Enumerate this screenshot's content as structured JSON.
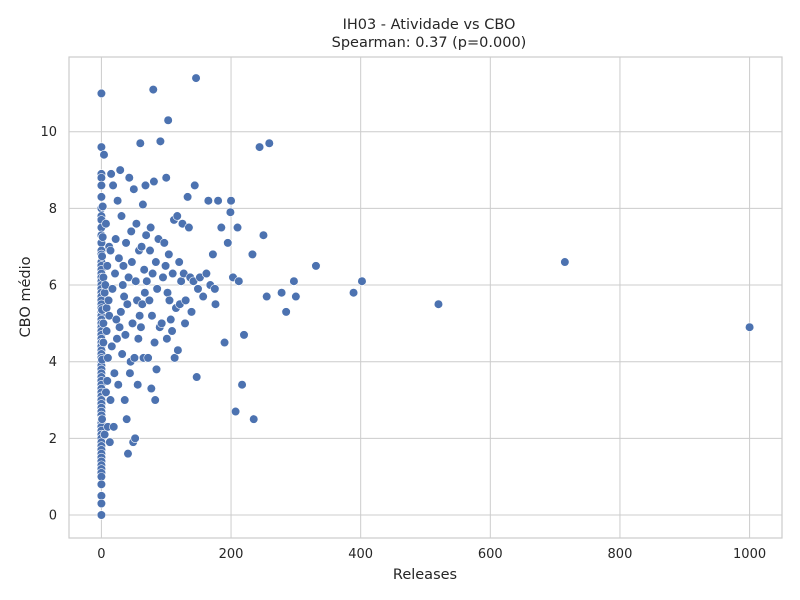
{
  "chart_data": {
    "type": "scatter",
    "title": "IH03 - Atividade vs CBO",
    "subtitle": "Spearman: 0.37 (p=0.000)",
    "xlabel": "Releases",
    "ylabel": "CBO médio",
    "xlim": [
      -50,
      1050
    ],
    "ylim": [
      -0.6,
      11.95
    ],
    "xticks": [
      0,
      200,
      400,
      600,
      800,
      1000
    ],
    "yticks": [
      0,
      2,
      4,
      6,
      8,
      10
    ],
    "grid": true,
    "legend": "none",
    "point_color": "#4c72b0",
    "points": [
      [
        0,
        11.0
      ],
      [
        0,
        9.6
      ],
      [
        0,
        8.9
      ],
      [
        0,
        8.8
      ],
      [
        0,
        8.6
      ],
      [
        0,
        8.3
      ],
      [
        0,
        8.0
      ],
      [
        0,
        7.8
      ],
      [
        0,
        7.7
      ],
      [
        0,
        7.5
      ],
      [
        0,
        7.3
      ],
      [
        0,
        7.1
      ],
      [
        0,
        6.9
      ],
      [
        0,
        6.8
      ],
      [
        0,
        6.6
      ],
      [
        0,
        6.5
      ],
      [
        0,
        6.4
      ],
      [
        0,
        6.3
      ],
      [
        0,
        6.2
      ],
      [
        0,
        6.1
      ],
      [
        0,
        6.0
      ],
      [
        0,
        5.9
      ],
      [
        0,
        5.8
      ],
      [
        0,
        5.7
      ],
      [
        0,
        5.6
      ],
      [
        0,
        5.5
      ],
      [
        0,
        5.4
      ],
      [
        0,
        5.3
      ],
      [
        0,
        5.2
      ],
      [
        0,
        5.1
      ],
      [
        0,
        5.0
      ],
      [
        0,
        4.9
      ],
      [
        0,
        4.8
      ],
      [
        0,
        4.7
      ],
      [
        0,
        4.6
      ],
      [
        0,
        4.5
      ],
      [
        0,
        4.4
      ],
      [
        0,
        4.3
      ],
      [
        0,
        4.2
      ],
      [
        0,
        4.1
      ],
      [
        0,
        4.0
      ],
      [
        0,
        3.9
      ],
      [
        0,
        3.8
      ],
      [
        0,
        3.7
      ],
      [
        0,
        3.6
      ],
      [
        0,
        3.5
      ],
      [
        0,
        3.4
      ],
      [
        0,
        3.3
      ],
      [
        0,
        3.2
      ],
      [
        0,
        3.1
      ],
      [
        0,
        3.0
      ],
      [
        0,
        2.9
      ],
      [
        0,
        2.8
      ],
      [
        0,
        2.7
      ],
      [
        0,
        2.6
      ],
      [
        0,
        2.5
      ],
      [
        0,
        2.4
      ],
      [
        0,
        2.3
      ],
      [
        0,
        2.2
      ],
      [
        0,
        2.1
      ],
      [
        0,
        2.0
      ],
      [
        0,
        1.9
      ],
      [
        0,
        1.8
      ],
      [
        0,
        1.7
      ],
      [
        0,
        1.6
      ],
      [
        0,
        1.5
      ],
      [
        0,
        1.4
      ],
      [
        0,
        1.3
      ],
      [
        0,
        1.2
      ],
      [
        0,
        1.1
      ],
      [
        0,
        1.0
      ],
      [
        0,
        0.8
      ],
      [
        0,
        0.5
      ],
      [
        0,
        0.3
      ],
      [
        0,
        0.0
      ],
      [
        1,
        2.5
      ],
      [
        1,
        4.05
      ],
      [
        1,
        5.35
      ],
      [
        1,
        6.75
      ],
      [
        2,
        7.25
      ],
      [
        2,
        8.05
      ],
      [
        3,
        4.5
      ],
      [
        3,
        6.2
      ],
      [
        3,
        5.0
      ],
      [
        4,
        9.4
      ],
      [
        5,
        2.1
      ],
      [
        5,
        5.8
      ],
      [
        6,
        6.0
      ],
      [
        7,
        3.2
      ],
      [
        7,
        7.6
      ],
      [
        8,
        5.4
      ],
      [
        8,
        4.8
      ],
      [
        9,
        3.5
      ],
      [
        9,
        6.5
      ],
      [
        10,
        2.3
      ],
      [
        10,
        4.1
      ],
      [
        11,
        5.6
      ],
      [
        12,
        7.0
      ],
      [
        12,
        5.2
      ],
      [
        13,
        1.9
      ],
      [
        14,
        3.0
      ],
      [
        14,
        6.9
      ],
      [
        15,
        8.9
      ],
      [
        16,
        4.4
      ],
      [
        17,
        5.9
      ],
      [
        18,
        8.6
      ],
      [
        19,
        2.3
      ],
      [
        20,
        3.7
      ],
      [
        21,
        6.3
      ],
      [
        22,
        7.2
      ],
      [
        23,
        5.1
      ],
      [
        24,
        4.6
      ],
      [
        25,
        8.2
      ],
      [
        26,
        3.4
      ],
      [
        27,
        6.7
      ],
      [
        28,
        4.9
      ],
      [
        29,
        9.0
      ],
      [
        30,
        5.3
      ],
      [
        31,
        7.8
      ],
      [
        32,
        4.2
      ],
      [
        33,
        6.0
      ],
      [
        34,
        6.5
      ],
      [
        35,
        5.7
      ],
      [
        36,
        3.0
      ],
      [
        37,
        4.7
      ],
      [
        38,
        7.1
      ],
      [
        39,
        2.5
      ],
      [
        40,
        5.5
      ],
      [
        41,
        1.6
      ],
      [
        42,
        6.2
      ],
      [
        43,
        8.8
      ],
      [
        44,
        3.7
      ],
      [
        45,
        4.0
      ],
      [
        46,
        7.4
      ],
      [
        47,
        6.6
      ],
      [
        48,
        5.0
      ],
      [
        49,
        1.9
      ],
      [
        50,
        8.5
      ],
      [
        51,
        4.1
      ],
      [
        52,
        2.0
      ],
      [
        53,
        6.1
      ],
      [
        54,
        7.6
      ],
      [
        55,
        5.6
      ],
      [
        56,
        3.4
      ],
      [
        57,
        4.6
      ],
      [
        58,
        6.9
      ],
      [
        59,
        5.2
      ],
      [
        60,
        9.7
      ],
      [
        61,
        4.9
      ],
      [
        62,
        7.0
      ],
      [
        63,
        5.5
      ],
      [
        64,
        8.1
      ],
      [
        65,
        4.1
      ],
      [
        66,
        6.4
      ],
      [
        67,
        5.8
      ],
      [
        68,
        8.6
      ],
      [
        69,
        7.3
      ],
      [
        70,
        6.1
      ],
      [
        72,
        4.1
      ],
      [
        74,
        5.6
      ],
      [
        75,
        6.9
      ],
      [
        76,
        7.5
      ],
      [
        77,
        3.3
      ],
      [
        78,
        5.2
      ],
      [
        79,
        6.3
      ],
      [
        80,
        11.1
      ],
      [
        81,
        8.7
      ],
      [
        82,
        4.5
      ],
      [
        83,
        3.0
      ],
      [
        84,
        6.6
      ],
      [
        85,
        3.8
      ],
      [
        86,
        5.9
      ],
      [
        88,
        7.2
      ],
      [
        90,
        4.9
      ],
      [
        91,
        9.75
      ],
      [
        93,
        5.0
      ],
      [
        95,
        6.2
      ],
      [
        97,
        7.1
      ],
      [
        99,
        6.5
      ],
      [
        100,
        8.8
      ],
      [
        101,
        4.6
      ],
      [
        102,
        5.8
      ],
      [
        103,
        10.3
      ],
      [
        104,
        6.8
      ],
      [
        105,
        5.6
      ],
      [
        107,
        5.1
      ],
      [
        109,
        4.8
      ],
      [
        110,
        6.3
      ],
      [
        112,
        7.7
      ],
      [
        113,
        4.1
      ],
      [
        115,
        5.4
      ],
      [
        117,
        7.8
      ],
      [
        118,
        4.3
      ],
      [
        120,
        6.6
      ],
      [
        121,
        5.5
      ],
      [
        123,
        6.1
      ],
      [
        125,
        7.6
      ],
      [
        127,
        6.3
      ],
      [
        129,
        5.0
      ],
      [
        130,
        5.6
      ],
      [
        133,
        8.3
      ],
      [
        135,
        7.5
      ],
      [
        137,
        6.2
      ],
      [
        139,
        5.3
      ],
      [
        142,
        6.1
      ],
      [
        144,
        8.6
      ],
      [
        146,
        11.4
      ],
      [
        147,
        3.6
      ],
      [
        149,
        5.9
      ],
      [
        152,
        6.2
      ],
      [
        157,
        5.7
      ],
      [
        162,
        6.3
      ],
      [
        165,
        8.2
      ],
      [
        168,
        6.0
      ],
      [
        172,
        6.8
      ],
      [
        175,
        5.9
      ],
      [
        176,
        5.5
      ],
      [
        180,
        8.2
      ],
      [
        185,
        7.5
      ],
      [
        190,
        4.5
      ],
      [
        195,
        7.1
      ],
      [
        199,
        7.9
      ],
      [
        200,
        8.2
      ],
      [
        203,
        6.2
      ],
      [
        207,
        2.7
      ],
      [
        210,
        7.5
      ],
      [
        212,
        6.1
      ],
      [
        217,
        3.4
      ],
      [
        220,
        4.7
      ],
      [
        233,
        6.8
      ],
      [
        235,
        2.5
      ],
      [
        244,
        9.6
      ],
      [
        250,
        7.3
      ],
      [
        255,
        5.7
      ],
      [
        259,
        9.7
      ],
      [
        278,
        5.8
      ],
      [
        285,
        5.3
      ],
      [
        297,
        6.1
      ],
      [
        300,
        5.7
      ],
      [
        331,
        6.5
      ],
      [
        389,
        5.8
      ],
      [
        402,
        6.1
      ],
      [
        520,
        5.5
      ],
      [
        715,
        6.6
      ],
      [
        1000,
        4.9
      ]
    ]
  }
}
